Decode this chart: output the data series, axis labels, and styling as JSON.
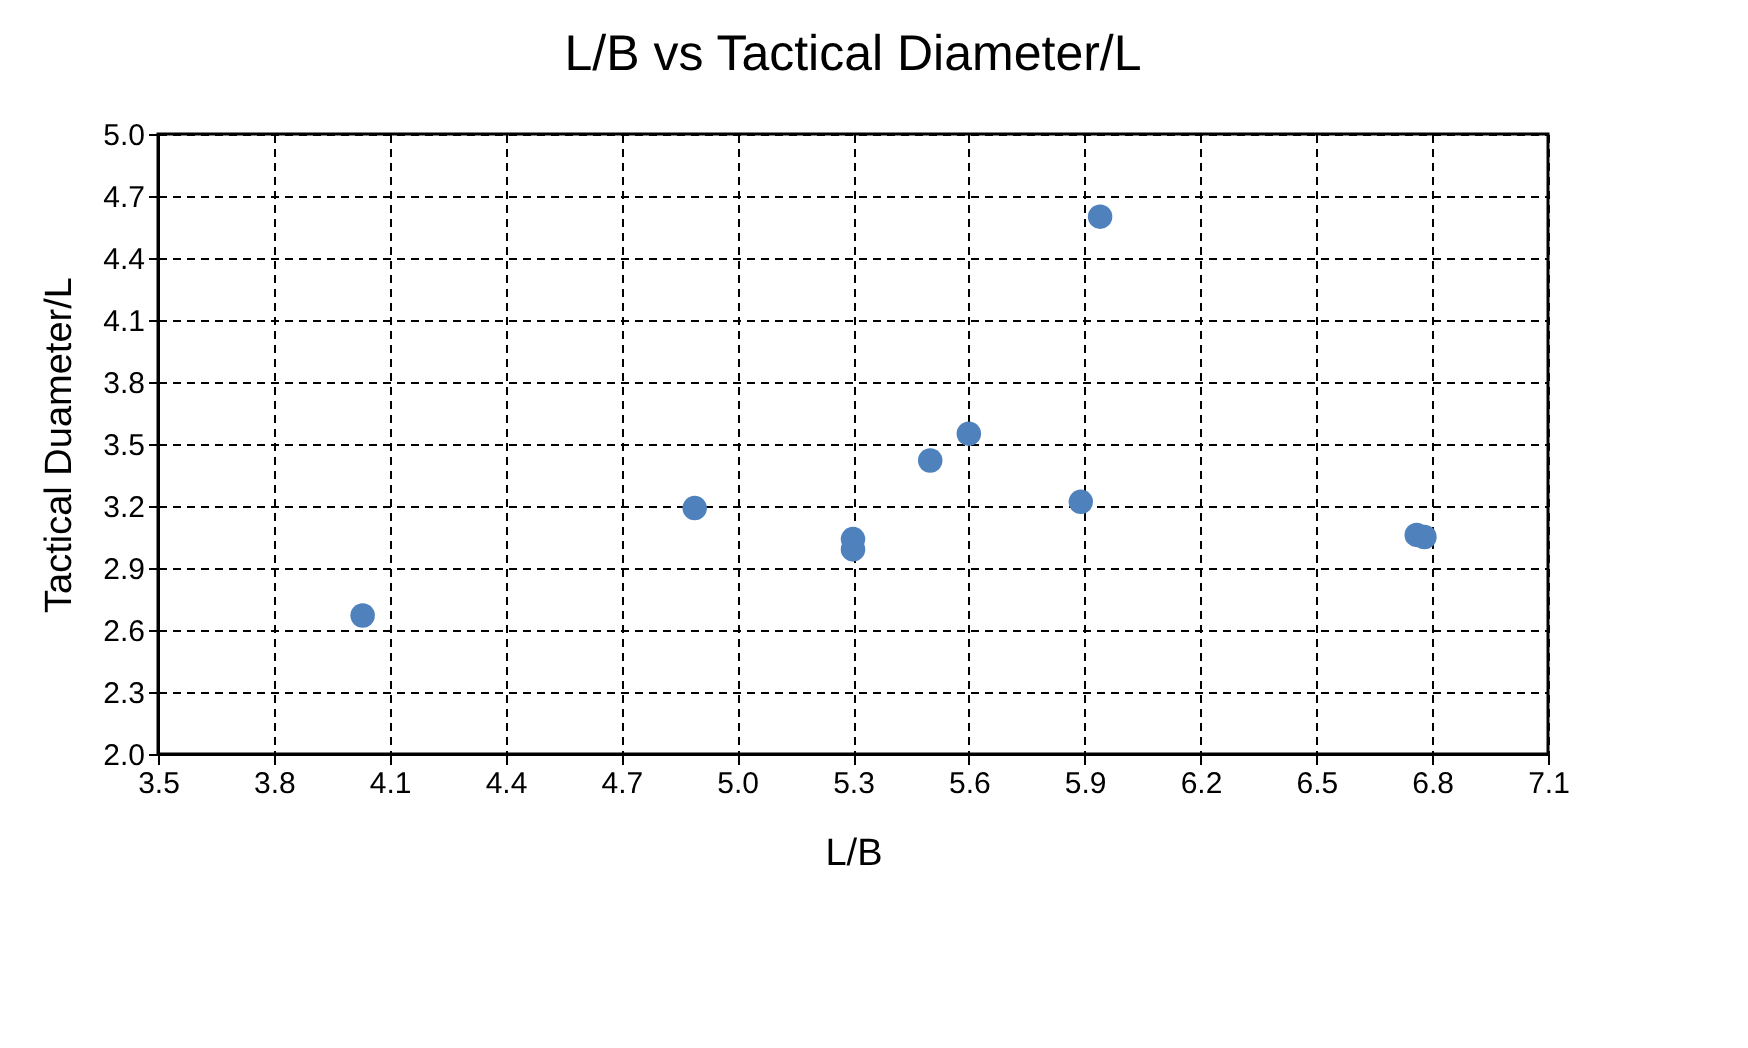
{
  "chart_data": {
    "type": "scatter",
    "title": "L/B vs Tactical Diameter/L",
    "xlabel": "L/B",
    "ylabel": "Tactical Duameter/L",
    "x": [
      4.03,
      4.89,
      5.3,
      5.3,
      5.5,
      5.6,
      5.89,
      5.94,
      6.76,
      6.78
    ],
    "series": [
      {
        "color": "#4f81bd",
        "values": [
          2.67,
          3.19,
          3.04,
          2.99,
          3.42,
          3.55,
          3.22,
          4.6,
          3.06,
          3.05
        ]
      }
    ],
    "xlim": [
      3.5,
      7.1
    ],
    "xticks": [
      3.5,
      3.8,
      4.1,
      4.4,
      4.7,
      {
        "value": 5,
        "label": "5.0"
      },
      5.3,
      5.6,
      5.9,
      6.2,
      6.5,
      6.8,
      7.1
    ],
    "ylim": [
      2.0,
      5.0
    ],
    "yticks": [
      {
        "value": 2,
        "label": "2.0"
      },
      2.3,
      2.6,
      2.9,
      3.2,
      3.5,
      3.8,
      4.1,
      4.4,
      4.7,
      {
        "value": 5,
        "label": "5.0"
      }
    ],
    "grid": true,
    "marker": "circle",
    "legend": false
  }
}
